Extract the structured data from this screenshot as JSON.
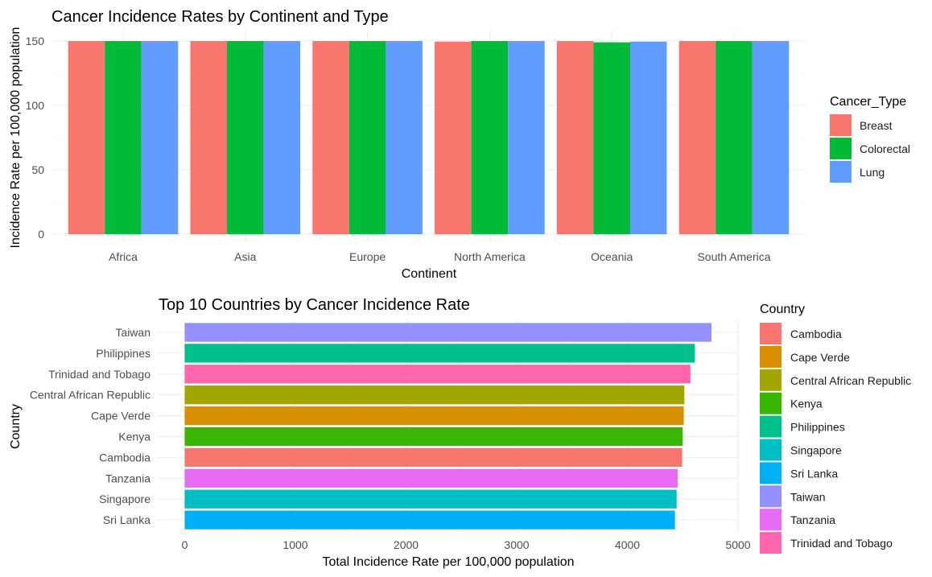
{
  "chart_data": [
    {
      "type": "bar",
      "title": "Cancer Incidence Rates by Continent and Type",
      "xlabel": "Continent",
      "ylabel": "Incidence Rate per 100,000 population",
      "ylim": [
        0,
        150
      ],
      "yticks": [
        0,
        50,
        100,
        150
      ],
      "grid": true,
      "legend_title": "Cancer_Type",
      "legend_position": "right",
      "categories": [
        "Africa",
        "Asia",
        "Europe",
        "North America",
        "Oceania",
        "South America"
      ],
      "series": [
        {
          "name": "Breast",
          "color": "#F8766D",
          "values": [
            150,
            150,
            150,
            149.5,
            150,
            150
          ]
        },
        {
          "name": "Colorectal",
          "color": "#00BA38",
          "values": [
            150,
            150,
            150,
            150,
            149,
            150
          ]
        },
        {
          "name": "Lung",
          "color": "#619CFF",
          "values": [
            150,
            150,
            150,
            150,
            149.5,
            150
          ]
        }
      ]
    },
    {
      "type": "bar",
      "orientation": "horizontal",
      "title": "Top 10 Countries by Cancer Incidence Rate",
      "xlabel": "Total Incidence Rate per 100,000 population",
      "ylabel": "Country",
      "xlim": [
        0,
        5000
      ],
      "xticks": [
        0,
        1000,
        2000,
        3000,
        4000,
        5000
      ],
      "grid": true,
      "legend_title": "Country",
      "legend_position": "right",
      "categories": [
        "Taiwan",
        "Philippines",
        "Trinidad and Tobago",
        "Central African Republic",
        "Cape Verde",
        "Kenya",
        "Cambodia",
        "Tanzania",
        "Singapore",
        "Sri Lanka"
      ],
      "values": [
        4760,
        4610,
        4570,
        4515,
        4510,
        4500,
        4495,
        4455,
        4445,
        4430
      ],
      "colors": [
        "#9590FF",
        "#00C08B",
        "#FF65AC",
        "#A3A500",
        "#D89000",
        "#39B600",
        "#F8766D",
        "#E76BF3",
        "#00BFC4",
        "#00B0F6"
      ],
      "legend": [
        {
          "name": "Cambodia",
          "color": "#F8766D"
        },
        {
          "name": "Cape Verde",
          "color": "#D89000"
        },
        {
          "name": "Central African Republic",
          "color": "#A3A500"
        },
        {
          "name": "Kenya",
          "color": "#39B600"
        },
        {
          "name": "Philippines",
          "color": "#00C08B"
        },
        {
          "name": "Singapore",
          "color": "#00BFC4"
        },
        {
          "name": "Sri Lanka",
          "color": "#00B0F6"
        },
        {
          "name": "Taiwan",
          "color": "#9590FF"
        },
        {
          "name": "Tanzania",
          "color": "#E76BF3"
        },
        {
          "name": "Trinidad and Tobago",
          "color": "#FF65AC"
        }
      ]
    }
  ]
}
